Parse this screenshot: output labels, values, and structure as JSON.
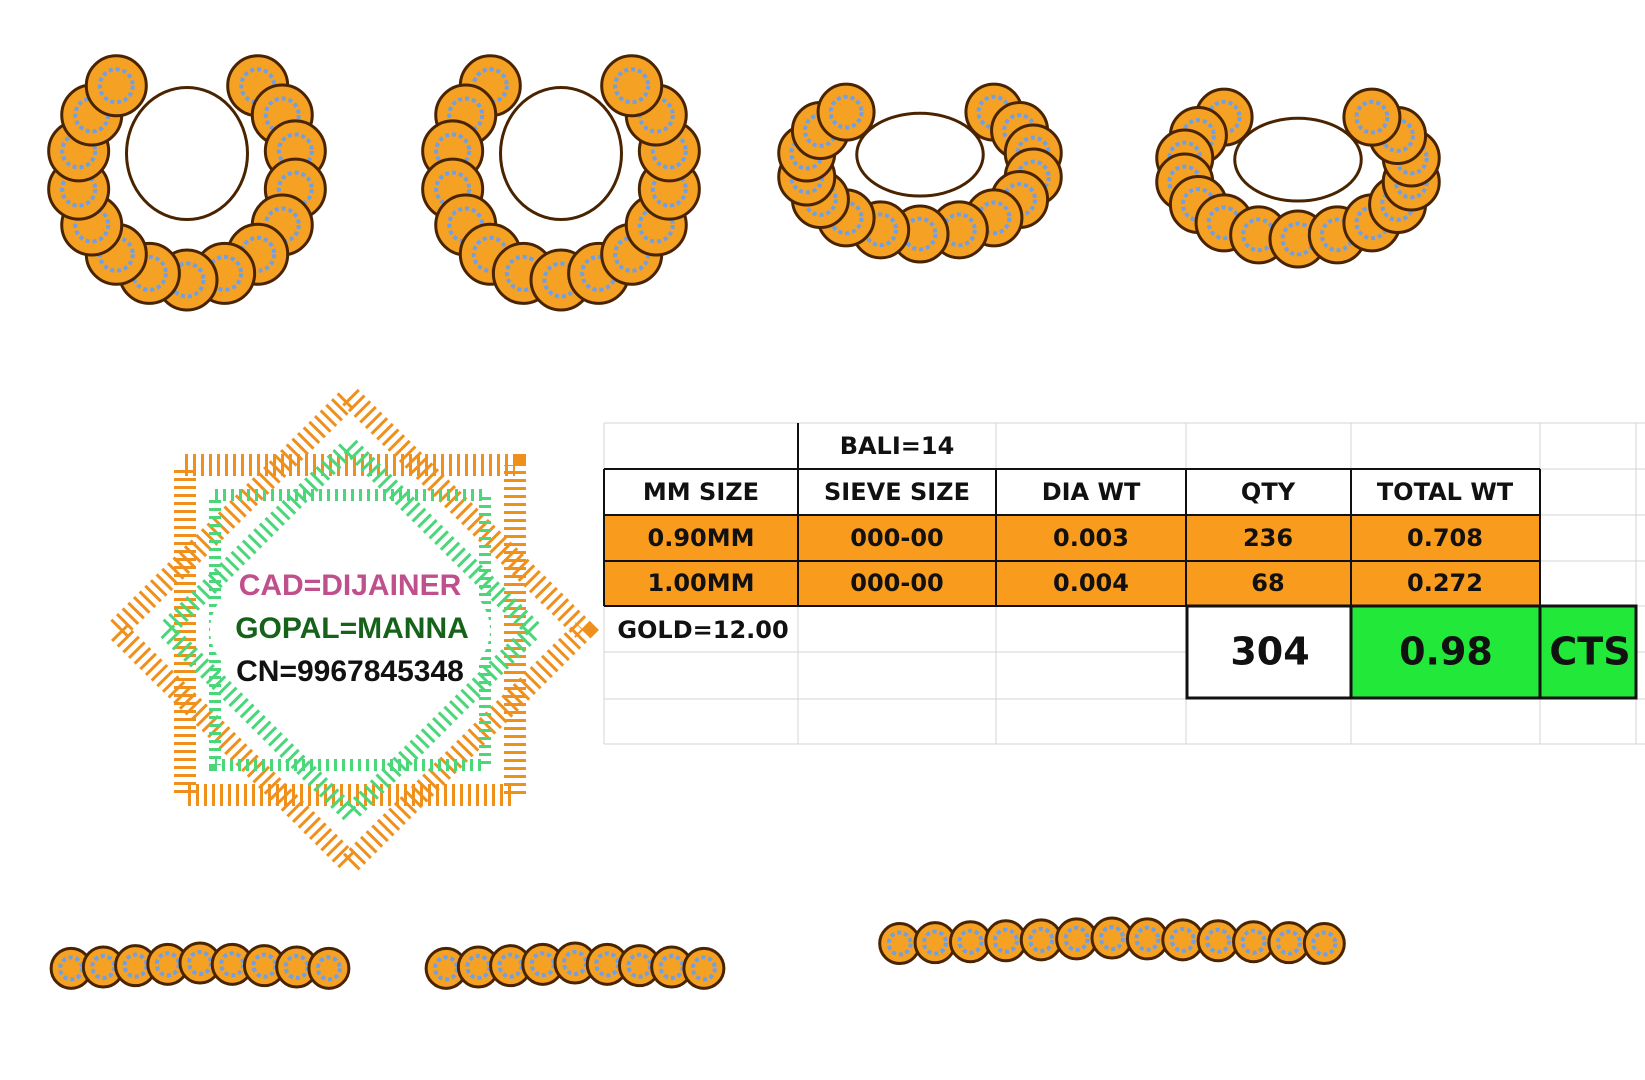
{
  "logo": {
    "lines": [
      "CAD=DIJAINER",
      "GOPAL=MANNA",
      "CN=9967845348"
    ]
  },
  "table": {
    "title": "BALI=14",
    "headers": [
      "MM SIZE",
      "SIEVE SIZE",
      "DIA WT",
      "QTY",
      "TOTAL WT"
    ],
    "rows": [
      [
        "0.90MM",
        "000-00",
        "0.003",
        "236",
        "0.708"
      ],
      [
        "1.00MM",
        "000-00",
        "0.004",
        "68",
        "0.272"
      ]
    ],
    "gold": "GOLD=12.00",
    "total_qty": "304",
    "total_wt": "0.98",
    "unit": "CTS"
  }
}
